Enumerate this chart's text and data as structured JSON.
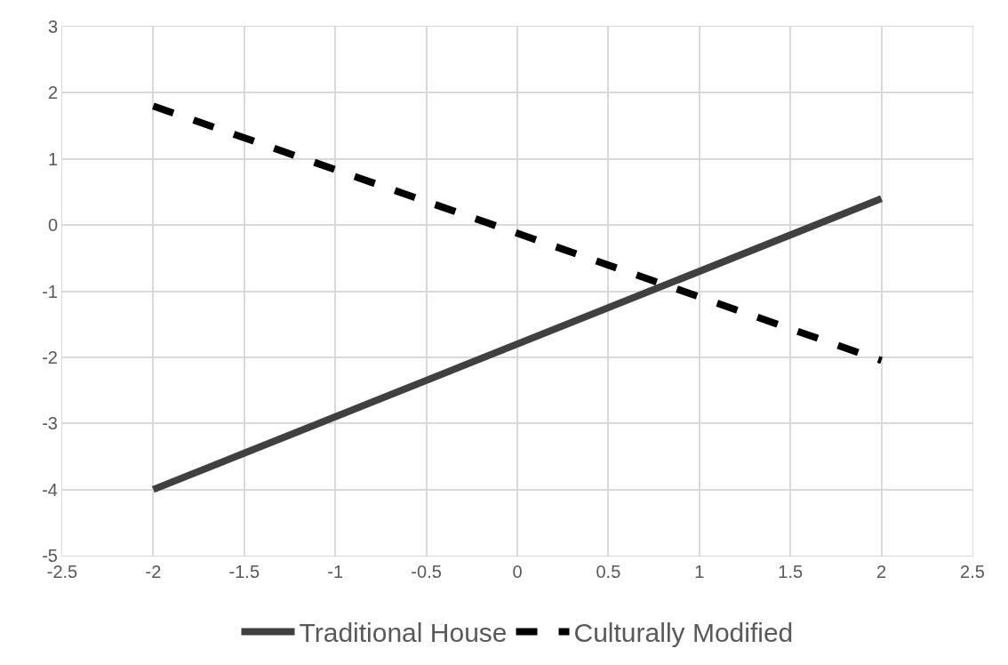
{
  "chart_data": {
    "type": "line",
    "x": [
      -2,
      2
    ],
    "series": [
      {
        "name": "Traditional House",
        "color": "#404040",
        "values": [
          -4,
          0.4
        ],
        "line_style": "solid"
      },
      {
        "name": "Culturally Modified",
        "color": "#000000",
        "values": [
          1.8,
          -2.05
        ],
        "line_style": "dashed"
      }
    ],
    "xlim": [
      -2.5,
      2.5
    ],
    "xticks": [
      -2.5,
      -2,
      -1.5,
      -1,
      -0.5,
      0,
      0.5,
      1,
      1.5,
      2,
      2.5
    ],
    "ylim": [
      -5,
      3
    ],
    "yticks": [
      -5,
      -4,
      -3,
      -2,
      -1,
      0,
      1,
      2,
      3
    ],
    "grid": true,
    "legend": "bottom",
    "marker": "none"
  }
}
